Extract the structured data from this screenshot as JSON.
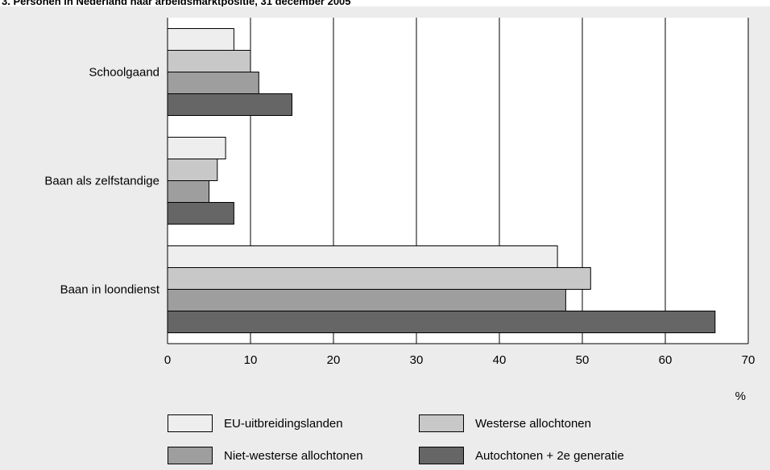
{
  "title": "3. Personen in Nederland naar arbeidsmarktpositie, 31 december 2005",
  "chart_data": {
    "type": "bar",
    "orientation": "horizontal",
    "categories": [
      "Schoolgaand",
      "Baan als zelfstandige",
      "Baan in loondienst"
    ],
    "series": [
      {
        "name": "EU-uitbreidingslanden",
        "values": [
          8,
          7,
          47
        ],
        "color": "#eeeeee"
      },
      {
        "name": "Westerse allochtonen",
        "values": [
          10,
          6,
          51
        ],
        "color": "#c8c8c8"
      },
      {
        "name": "Niet-westerse allochtonen",
        "values": [
          11,
          5,
          48
        ],
        "color": "#9e9e9e"
      },
      {
        "name": "Autochtonen + 2e generatie",
        "values": [
          15,
          8,
          66
        ],
        "color": "#666666"
      }
    ],
    "xlim": [
      0,
      70
    ],
    "xticks": [
      0,
      10,
      20,
      30,
      40,
      50,
      60,
      70
    ],
    "xlabel": "%",
    "grid": true,
    "legend_position": "bottom"
  }
}
